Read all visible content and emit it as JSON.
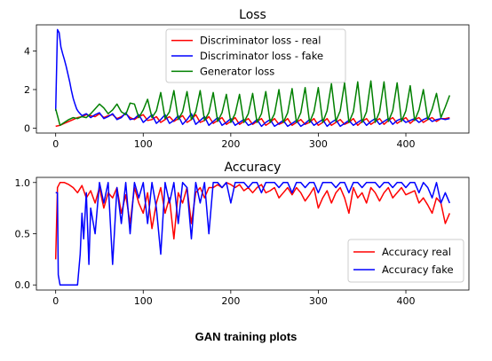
{
  "caption": "GAN training plots",
  "colors": {
    "red": "#ff0000",
    "blue": "#0000ff",
    "green": "#008000"
  },
  "chart_data": [
    {
      "type": "line",
      "title": "Loss",
      "xlabel": "",
      "ylabel": "",
      "xlim": [
        -22,
        472
      ],
      "ylim": [
        -0.25,
        5.35
      ],
      "xticks": [
        0,
        100,
        200,
        300,
        400
      ],
      "yticks": [
        0,
        2,
        4
      ],
      "grid": false,
      "legend_position": "upper center",
      "series": [
        {
          "name": "Discriminator loss - real",
          "color": "#ff0000",
          "x": [
            0,
            5,
            10,
            15,
            20,
            25,
            30,
            35,
            40,
            45,
            50,
            55,
            60,
            65,
            70,
            75,
            80,
            85,
            90,
            95,
            100,
            105,
            110,
            115,
            120,
            125,
            130,
            135,
            140,
            145,
            150,
            155,
            160,
            165,
            170,
            175,
            180,
            185,
            190,
            195,
            200,
            205,
            210,
            215,
            220,
            225,
            230,
            235,
            240,
            245,
            250,
            255,
            260,
            265,
            270,
            275,
            280,
            285,
            290,
            295,
            300,
            305,
            310,
            315,
            320,
            325,
            330,
            335,
            340,
            345,
            350,
            355,
            360,
            365,
            370,
            375,
            380,
            385,
            390,
            395,
            400,
            405,
            410,
            415,
            420,
            425,
            430,
            435,
            440,
            445,
            450
          ],
          "y": [
            0.1,
            0.15,
            0.25,
            0.35,
            0.45,
            0.55,
            0.6,
            0.7,
            0.65,
            0.6,
            0.75,
            0.55,
            0.65,
            0.7,
            0.5,
            0.6,
            0.75,
            0.55,
            0.45,
            0.6,
            0.7,
            0.4,
            0.45,
            0.6,
            0.3,
            0.45,
            0.6,
            0.35,
            0.5,
            0.65,
            0.3,
            0.45,
            0.7,
            0.3,
            0.4,
            0.6,
            0.25,
            0.4,
            0.55,
            0.2,
            0.35,
            0.55,
            0.2,
            0.35,
            0.5,
            0.2,
            0.35,
            0.5,
            0.15,
            0.3,
            0.5,
            0.2,
            0.3,
            0.5,
            0.15,
            0.3,
            0.45,
            0.2,
            0.3,
            0.5,
            0.15,
            0.3,
            0.5,
            0.15,
            0.3,
            0.45,
            0.2,
            0.3,
            0.5,
            0.15,
            0.35,
            0.5,
            0.2,
            0.35,
            0.5,
            0.2,
            0.4,
            0.55,
            0.25,
            0.4,
            0.55,
            0.25,
            0.45,
            0.55,
            0.3,
            0.45,
            0.55,
            0.35,
            0.5,
            0.5,
            0.55
          ]
        },
        {
          "name": "Discriminator loss - fake",
          "color": "#0000ff",
          "x": [
            0,
            2,
            4,
            6,
            8,
            10,
            12,
            14,
            16,
            18,
            20,
            22,
            24,
            26,
            28,
            30,
            35,
            40,
            45,
            50,
            55,
            60,
            65,
            70,
            75,
            80,
            85,
            90,
            95,
            100,
            105,
            110,
            115,
            120,
            125,
            130,
            135,
            140,
            145,
            150,
            155,
            160,
            165,
            170,
            175,
            180,
            185,
            190,
            195,
            200,
            205,
            210,
            215,
            220,
            225,
            230,
            235,
            240,
            245,
            250,
            255,
            260,
            265,
            270,
            275,
            280,
            285,
            290,
            295,
            300,
            305,
            310,
            315,
            320,
            325,
            330,
            335,
            340,
            345,
            350,
            355,
            360,
            365,
            370,
            375,
            380,
            385,
            390,
            395,
            400,
            405,
            410,
            415,
            420,
            425,
            430,
            435,
            440,
            445,
            450
          ],
          "y": [
            0.9,
            5.1,
            4.95,
            4.2,
            3.85,
            3.55,
            3.2,
            2.8,
            2.4,
            1.95,
            1.55,
            1.25,
            1.0,
            0.85,
            0.75,
            0.65,
            0.75,
            0.55,
            0.7,
            0.8,
            0.5,
            0.6,
            0.75,
            0.45,
            0.55,
            0.8,
            0.45,
            0.5,
            0.7,
            0.3,
            0.5,
            0.7,
            0.25,
            0.45,
            0.7,
            0.25,
            0.4,
            0.65,
            0.2,
            0.45,
            0.75,
            0.2,
            0.4,
            0.6,
            0.15,
            0.35,
            0.55,
            0.15,
            0.3,
            0.5,
            0.15,
            0.3,
            0.45,
            0.15,
            0.25,
            0.45,
            0.1,
            0.3,
            0.45,
            0.1,
            0.25,
            0.4,
            0.1,
            0.25,
            0.4,
            0.1,
            0.25,
            0.45,
            0.15,
            0.3,
            0.45,
            0.1,
            0.3,
            0.45,
            0.1,
            0.25,
            0.4,
            0.15,
            0.3,
            0.45,
            0.15,
            0.35,
            0.5,
            0.2,
            0.35,
            0.5,
            0.2,
            0.4,
            0.5,
            0.3,
            0.4,
            0.5,
            0.3,
            0.45,
            0.55,
            0.35,
            0.45,
            0.5,
            0.45,
            0.5
          ]
        },
        {
          "name": "Generator loss",
          "color": "#008000",
          "x": [
            0,
            5,
            10,
            15,
            20,
            25,
            30,
            35,
            40,
            45,
            50,
            55,
            60,
            65,
            70,
            75,
            80,
            85,
            90,
            95,
            100,
            105,
            110,
            115,
            120,
            125,
            130,
            135,
            140,
            145,
            150,
            155,
            160,
            165,
            170,
            175,
            180,
            185,
            190,
            195,
            200,
            205,
            210,
            215,
            220,
            225,
            230,
            235,
            240,
            245,
            250,
            255,
            260,
            265,
            270,
            275,
            280,
            285,
            290,
            295,
            300,
            305,
            310,
            315,
            320,
            325,
            330,
            335,
            340,
            345,
            350,
            355,
            360,
            365,
            370,
            375,
            380,
            385,
            390,
            395,
            400,
            405,
            410,
            415,
            420,
            425,
            430,
            435,
            440,
            445,
            450
          ],
          "y": [
            1.0,
            0.15,
            0.3,
            0.45,
            0.55,
            0.5,
            0.6,
            0.55,
            0.75,
            1.0,
            1.25,
            1.05,
            0.75,
            0.95,
            1.25,
            0.85,
            0.7,
            1.3,
            1.25,
            0.55,
            0.95,
            1.5,
            0.55,
            0.9,
            1.85,
            0.5,
            0.85,
            1.95,
            0.45,
            0.85,
            1.9,
            0.45,
            0.85,
            1.95,
            0.4,
            0.8,
            1.85,
            0.35,
            0.8,
            1.75,
            0.3,
            0.75,
            1.75,
            0.3,
            0.75,
            1.8,
            0.3,
            0.75,
            1.9,
            0.3,
            0.75,
            2.0,
            0.3,
            0.8,
            2.05,
            0.3,
            0.8,
            2.1,
            0.3,
            0.85,
            2.1,
            0.3,
            0.9,
            2.3,
            0.35,
            0.9,
            2.35,
            0.3,
            0.85,
            2.4,
            0.3,
            0.85,
            2.45,
            0.3,
            0.85,
            2.4,
            0.35,
            0.9,
            2.35,
            0.35,
            0.9,
            2.2,
            0.4,
            0.95,
            2.0,
            0.45,
            1.0,
            1.8,
            0.55,
            1.1,
            1.7
          ]
        }
      ]
    },
    {
      "type": "line",
      "title": "Accuracy",
      "xlabel": "",
      "ylabel": "",
      "xlim": [
        -22,
        472
      ],
      "ylim": [
        -0.05,
        1.05
      ],
      "xticks": [
        0,
        100,
        200,
        300,
        400
      ],
      "yticks": [
        0.0,
        0.5,
        1.0
      ],
      "grid": false,
      "legend_position": "lower right",
      "series": [
        {
          "name": "Accuracy real",
          "color": "#ff0000",
          "x": [
            0,
            2,
            5,
            10,
            15,
            20,
            25,
            30,
            35,
            40,
            45,
            50,
            55,
            60,
            65,
            70,
            75,
            80,
            85,
            90,
            95,
            100,
            105,
            110,
            115,
            120,
            125,
            130,
            135,
            140,
            145,
            150,
            155,
            160,
            165,
            170,
            175,
            180,
            185,
            190,
            195,
            200,
            205,
            210,
            215,
            220,
            225,
            230,
            235,
            240,
            245,
            250,
            255,
            260,
            265,
            270,
            275,
            280,
            285,
            290,
            295,
            300,
            305,
            310,
            315,
            320,
            325,
            330,
            335,
            340,
            345,
            350,
            355,
            360,
            365,
            370,
            375,
            380,
            385,
            390,
            395,
            400,
            405,
            410,
            415,
            420,
            425,
            430,
            435,
            440,
            445,
            450
          ],
          "y": [
            0.25,
            0.95,
            1.0,
            1.0,
            0.98,
            0.95,
            0.9,
            0.97,
            0.85,
            0.92,
            0.8,
            0.95,
            0.75,
            0.9,
            0.85,
            0.95,
            0.7,
            0.88,
            0.6,
            0.95,
            0.8,
            0.7,
            0.9,
            0.55,
            0.8,
            0.95,
            0.7,
            0.85,
            0.45,
            0.9,
            0.8,
            0.95,
            0.6,
            0.9,
            0.95,
            0.85,
            0.95,
            0.95,
            0.98,
            0.95,
            1.0,
            0.98,
            0.95,
            0.98,
            0.92,
            0.95,
            0.9,
            0.95,
            0.98,
            0.9,
            0.92,
            0.95,
            0.85,
            0.9,
            0.95,
            0.88,
            0.95,
            0.9,
            0.82,
            0.88,
            0.95,
            0.75,
            0.85,
            0.92,
            0.8,
            0.9,
            0.95,
            0.85,
            0.7,
            0.95,
            0.85,
            0.9,
            0.8,
            0.95,
            0.9,
            0.82,
            0.9,
            0.95,
            0.85,
            0.9,
            0.95,
            0.88,
            0.9,
            0.92,
            0.8,
            0.85,
            0.78,
            0.7,
            0.85,
            0.8,
            0.6,
            0.7
          ]
        },
        {
          "name": "Accuracy fake",
          "color": "#0000ff",
          "x": [
            0,
            2,
            3,
            5,
            10,
            15,
            20,
            25,
            28,
            30,
            32,
            35,
            38,
            40,
            45,
            50,
            55,
            60,
            65,
            70,
            75,
            80,
            85,
            90,
            95,
            100,
            105,
            110,
            115,
            120,
            125,
            130,
            135,
            140,
            145,
            150,
            155,
            160,
            165,
            170,
            175,
            180,
            185,
            190,
            195,
            200,
            205,
            210,
            215,
            220,
            225,
            230,
            235,
            240,
            245,
            250,
            255,
            260,
            265,
            270,
            275,
            280,
            285,
            290,
            295,
            300,
            305,
            310,
            315,
            320,
            325,
            330,
            335,
            340,
            345,
            350,
            355,
            360,
            365,
            370,
            375,
            380,
            385,
            390,
            395,
            400,
            405,
            410,
            415,
            420,
            425,
            430,
            435,
            440,
            445,
            450
          ],
          "y": [
            0.9,
            0.9,
            0.1,
            0.0,
            0.0,
            0.0,
            0.0,
            0.0,
            0.3,
            0.7,
            0.45,
            0.9,
            0.2,
            0.75,
            0.5,
            1.0,
            0.8,
            1.0,
            0.2,
            0.95,
            0.6,
            1.0,
            0.5,
            1.0,
            0.85,
            1.0,
            0.6,
            1.0,
            0.75,
            0.3,
            1.0,
            0.8,
            1.0,
            0.6,
            1.0,
            0.95,
            0.45,
            1.0,
            0.8,
            1.0,
            0.5,
            1.0,
            1.0,
            0.95,
            1.0,
            0.8,
            1.0,
            1.0,
            1.0,
            0.95,
            1.0,
            1.0,
            0.9,
            1.0,
            1.0,
            1.0,
            0.95,
            1.0,
            1.0,
            0.9,
            1.0,
            1.0,
            0.95,
            1.0,
            1.0,
            0.9,
            1.0,
            1.0,
            1.0,
            0.95,
            1.0,
            1.0,
            0.9,
            1.0,
            1.0,
            0.95,
            1.0,
            1.0,
            1.0,
            0.95,
            1.0,
            1.0,
            0.95,
            1.0,
            1.0,
            0.95,
            1.0,
            1.0,
            0.9,
            1.0,
            0.95,
            0.85,
            1.0,
            0.8,
            0.9,
            0.8
          ]
        }
      ]
    }
  ]
}
